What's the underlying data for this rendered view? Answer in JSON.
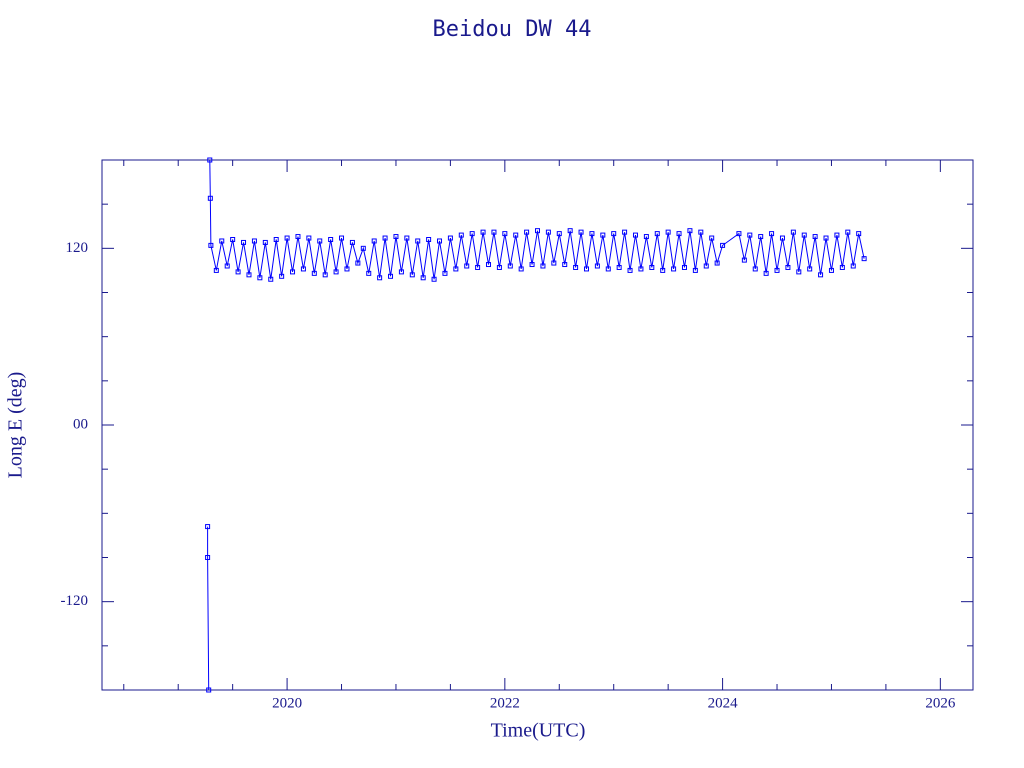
{
  "chart_data": {
    "type": "line",
    "title": "Beidou DW 44",
    "xlabel": "Time(UTC)",
    "ylabel": "Long E (deg)",
    "x": [
      2019.27,
      2019.27,
      2019.28,
      2019.285,
      2019.29,
      2019.295,
      2019.3,
      2019.35,
      2019.4,
      2019.45,
      2019.5,
      2019.55,
      2019.6,
      2019.65,
      2019.7,
      2019.75,
      2019.8,
      2019.85,
      2019.9,
      2019.95,
      2020.0,
      2020.05,
      2020.1,
      2020.15,
      2020.2,
      2020.25,
      2020.3,
      2020.35,
      2020.4,
      2020.45,
      2020.5,
      2020.55,
      2020.6,
      2020.65,
      2020.7,
      2020.75,
      2020.8,
      2020.85,
      2020.9,
      2020.95,
      2021.0,
      2021.05,
      2021.1,
      2021.15,
      2021.2,
      2021.25,
      2021.3,
      2021.35,
      2021.4,
      2021.45,
      2021.5,
      2021.55,
      2021.6,
      2021.65,
      2021.7,
      2021.75,
      2021.8,
      2021.85,
      2021.9,
      2021.95,
      2022.0,
      2022.05,
      2022.1,
      2022.15,
      2022.2,
      2022.25,
      2022.3,
      2022.35,
      2022.4,
      2022.45,
      2022.5,
      2022.55,
      2022.6,
      2022.65,
      2022.7,
      2022.75,
      2022.8,
      2022.85,
      2022.9,
      2022.95,
      2023.0,
      2023.05,
      2023.1,
      2023.15,
      2023.2,
      2023.25,
      2023.3,
      2023.35,
      2023.4,
      2023.45,
      2023.5,
      2023.55,
      2023.6,
      2023.65,
      2023.7,
      2023.75,
      2023.8,
      2023.85,
      2023.9,
      2023.95,
      2024.0,
      2024.15,
      2024.2,
      2024.25,
      2024.3,
      2024.35,
      2024.4,
      2024.45,
      2024.5,
      2024.55,
      2024.6,
      2024.65,
      2024.7,
      2024.75,
      2024.8,
      2024.85,
      2024.9,
      2024.95,
      2025.0,
      2025.05,
      2025.1,
      2025.15,
      2025.2,
      2025.25,
      2025.3
    ],
    "series": [
      {
        "color": "#0000ff",
        "values": [
          -69,
          -90,
          -180,
          null,
          180,
          154,
          122,
          105,
          125,
          108,
          126,
          104,
          124,
          102,
          125,
          100,
          124,
          99,
          126,
          101,
          127,
          104,
          128,
          106,
          127,
          103,
          125,
          102,
          126,
          104,
          127,
          106,
          124,
          110,
          120,
          103,
          125,
          100,
          127,
          101,
          128,
          104,
          127,
          102,
          125,
          100,
          126,
          99,
          125,
          103,
          127,
          106,
          129,
          108,
          130,
          107,
          131,
          109,
          131,
          107,
          130,
          108,
          129,
          106,
          131,
          109,
          132,
          108,
          131,
          110,
          130,
          109,
          132,
          107,
          131,
          106,
          130,
          108,
          129,
          106,
          130,
          107,
          131,
          105,
          129,
          106,
          128,
          107,
          130,
          105,
          131,
          106,
          130,
          107,
          132,
          105,
          131,
          108,
          127,
          110,
          122,
          130,
          112,
          129,
          106,
          128,
          103,
          130,
          105,
          127,
          107,
          131,
          104,
          129,
          106,
          128,
          102,
          127,
          105,
          129,
          107,
          131,
          108,
          130,
          113
        ]
      }
    ],
    "xlim": [
      2018.3,
      2026.3
    ],
    "ylim": [
      -180,
      180
    ],
    "xticks": [
      2020,
      2022,
      2024,
      2026
    ],
    "yticks": [
      -120,
      {
        "value": 0,
        "label": "00"
      },
      120
    ],
    "xminorticks": [
      2018.5,
      2019,
      2019.5,
      2020.5,
      2021,
      2021.5,
      2022.5,
      2023,
      2023.5,
      2024.5,
      2025,
      2025.5
    ],
    "yminorticks": [
      -150,
      -90,
      -60,
      -30,
      30,
      60,
      90,
      150
    ]
  }
}
